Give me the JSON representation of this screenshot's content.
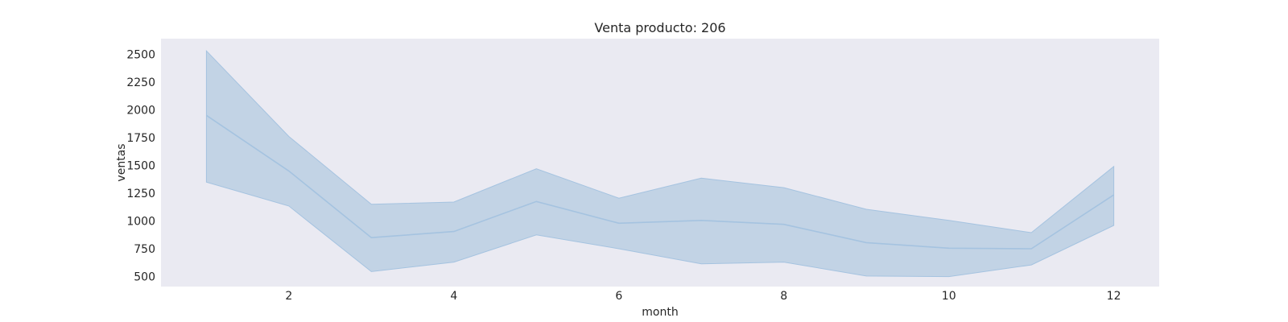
{
  "chart_data": {
    "type": "line",
    "title": "Venta producto: 206",
    "xlabel": "month",
    "ylabel": "ventas",
    "x": [
      1,
      2,
      3,
      4,
      5,
      6,
      7,
      8,
      9,
      10,
      11,
      12
    ],
    "series": [
      {
        "values": [
          1950,
          1450,
          850,
          905,
          1175,
          980,
          1005,
          970,
          805,
          755,
          750,
          1235
        ],
        "band_upper": [
          2530,
          1760,
          1150,
          1170,
          1470,
          1205,
          1385,
          1300,
          1105,
          1005,
          895,
          1490
        ],
        "band_lower": [
          1350,
          1135,
          545,
          630,
          875,
          750,
          615,
          630,
          505,
          500,
          605,
          960
        ]
      }
    ],
    "xticks": [
      2,
      4,
      6,
      8,
      10,
      12
    ],
    "yticks": [
      500,
      750,
      1000,
      1250,
      1500,
      1750,
      2000,
      2250,
      2500
    ],
    "xlim": [
      0.45,
      12.55
    ],
    "ylim": [
      410,
      2640
    ],
    "grid": false,
    "colors": {
      "background": "#eaeaf2",
      "line": "#a5c3e0",
      "band": "#c2d3e5",
      "band_edge": "#a5c3e0"
    }
  }
}
